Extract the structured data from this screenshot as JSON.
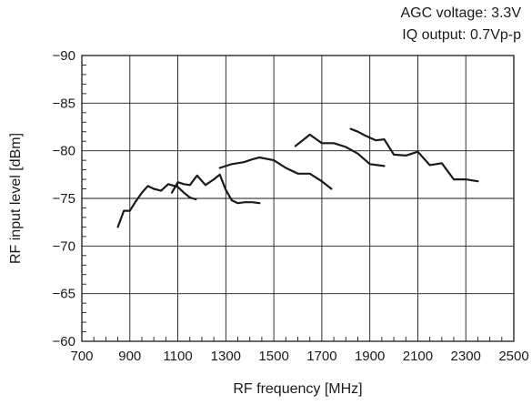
{
  "chart_data": {
    "type": "line",
    "title": "",
    "annotations": [
      "AGC voltage: 3.3V",
      "IQ output: 0.7Vp-p"
    ],
    "xlabel": "RF frequency [MHz]",
    "ylabel": "RF input level [dBm]",
    "xlim": [
      700,
      2500
    ],
    "ylim": [
      -60,
      -90
    ],
    "x_ticks": [
      700,
      900,
      1100,
      1300,
      1500,
      1700,
      1900,
      2100,
      2300,
      2500
    ],
    "y_ticks": [
      -90,
      -85,
      -80,
      -75,
      -70,
      -65,
      -60
    ],
    "grid": true,
    "legend": "none",
    "series_color": "#1a1a1a",
    "series": [
      {
        "x": [
          850,
          875,
          900,
          925,
          950,
          975,
          1000,
          1030,
          1060,
          1100,
          1125,
          1150,
          1175
        ],
        "y": [
          -72,
          -73.7,
          -73.7,
          -74.7,
          -75.6,
          -76.3,
          -76.0,
          -75.8,
          -76.5,
          -76.2,
          -75.6,
          -75.1,
          -74.9
        ]
      },
      {
        "x": [
          1075,
          1100,
          1125,
          1150,
          1180,
          1215,
          1250,
          1275,
          1300,
          1325,
          1350,
          1380,
          1410,
          1440
        ],
        "y": [
          -75.6,
          -76.7,
          -76.5,
          -76.4,
          -77.4,
          -76.4,
          -77.0,
          -77.5,
          -75.9,
          -74.8,
          -74.5,
          -74.6,
          -74.6,
          -74.5
        ]
      },
      {
        "x": [
          1275,
          1325,
          1375,
          1410,
          1440,
          1500,
          1550,
          1600,
          1650,
          1700,
          1740
        ],
        "y": [
          -78.2,
          -78.6,
          -78.8,
          -79.1,
          -79.3,
          -79.0,
          -78.2,
          -77.6,
          -77.6,
          -76.8,
          -76.0
        ]
      },
      {
        "x": [
          1590,
          1620,
          1650,
          1700,
          1750,
          1800,
          1850,
          1900,
          1960
        ],
        "y": [
          -80.5,
          -81.1,
          -81.7,
          -80.8,
          -80.8,
          -80.4,
          -79.7,
          -78.6,
          -78.4
        ]
      },
      {
        "x": [
          1820,
          1850,
          1880,
          1925,
          1960,
          2000,
          2050,
          2100,
          2150,
          2200,
          2250,
          2300,
          2350
        ],
        "y": [
          -82.3,
          -82.0,
          -81.6,
          -81.1,
          -81.2,
          -79.6,
          -79.5,
          -79.9,
          -78.5,
          -78.7,
          -77.0,
          -77.0,
          -76.8
        ]
      }
    ]
  }
}
